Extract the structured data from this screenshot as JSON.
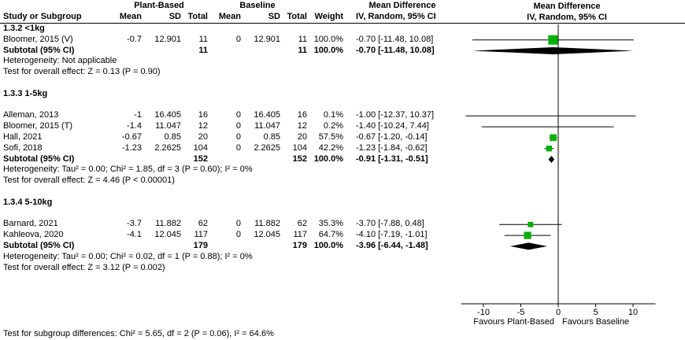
{
  "header": {
    "group_plant": "Plant-Based",
    "group_baseline": "Baseline",
    "md": "Mean Difference",
    "study": "Study or Subgroup",
    "mean": "Mean",
    "sd": "SD",
    "total": "Total",
    "weight": "Weight",
    "ci": "IV, Random, 95% CI"
  },
  "footer": {
    "subgroup_diff": "Test for subgroup differences: Chi² = 5.65, df = 2 (P = 0.06), I² = 64.6%"
  },
  "colors": {
    "square": "#00b000",
    "line": "#000000",
    "diamond": "#000000"
  },
  "chart_data": {
    "type": "forest",
    "title": "Mean Difference, IV, Random, 95% CI",
    "x_ticks": [
      -10,
      -5,
      0,
      5,
      10
    ],
    "x_range": [
      -13,
      13
    ],
    "favours_left": "Favours Plant-Based",
    "favours_right": "Favours Baseline",
    "rows": [
      {
        "type": "subgroup",
        "label": "1.3.2 <1kg"
      },
      {
        "type": "study",
        "label": "Bloomer, 2015 (V)",
        "mean1": "-0.7",
        "sd1": "12.901",
        "total1": "11",
        "mean2": "0",
        "sd2": "12.901",
        "total2": "11",
        "weight": "100.0%",
        "ci": "-0.70 [-11.48, 10.08]",
        "est": -0.7,
        "lo": -11.48,
        "hi": 10.08
      },
      {
        "type": "subtotal",
        "label": "Subtotal (95% CI)",
        "total1": "11",
        "total2": "11",
        "weight": "100.0%",
        "ci": "-0.70 [-11.48, 10.08]",
        "est": -0.7,
        "lo": -11.48,
        "hi": 10.08
      },
      {
        "type": "note",
        "label": "Heterogeneity: Not applicable"
      },
      {
        "type": "note",
        "label": "Test for overall effect: Z = 0.13 (P = 0.90)"
      },
      {
        "type": "blank"
      },
      {
        "type": "subgroup",
        "label": "1.3.3 1-5kg"
      },
      {
        "type": "blank"
      },
      {
        "type": "study",
        "label": "Alleman, 2013",
        "mean1": "-1",
        "sd1": "16.405",
        "total1": "16",
        "mean2": "0",
        "sd2": "16.405",
        "total2": "16",
        "weight": "0.1%",
        "ci": "-1.00 [-12.37, 10.37]",
        "est": -1.0,
        "lo": -12.37,
        "hi": 10.37
      },
      {
        "type": "study",
        "label": "Bloomer, 2015 (T)",
        "mean1": "-1.4",
        "sd1": "11.047",
        "total1": "12",
        "mean2": "0",
        "sd2": "11.047",
        "total2": "12",
        "weight": "0.2%",
        "ci": "-1.40 [-10.24, 7.44]",
        "est": -1.4,
        "lo": -10.24,
        "hi": 7.44
      },
      {
        "type": "study",
        "label": "Hall, 2021",
        "mean1": "-0.67",
        "sd1": "0.85",
        "total1": "20",
        "mean2": "0",
        "sd2": "0.85",
        "total2": "20",
        "weight": "57.5%",
        "ci": "-0.67 [-1.20, -0.14]",
        "est": -0.67,
        "lo": -1.2,
        "hi": -0.14
      },
      {
        "type": "study",
        "label": "Sofi, 2018",
        "mean1": "-1.23",
        "sd1": "2.2625",
        "total1": "104",
        "mean2": "0",
        "sd2": "2.2625",
        "total2": "104",
        "weight": "42.2%",
        "ci": "-1.23 [-1.84, -0.62]",
        "est": -1.23,
        "lo": -1.84,
        "hi": -0.62
      },
      {
        "type": "subtotal",
        "label": "Subtotal (95% CI)",
        "total1": "152",
        "total2": "152",
        "weight": "100.0%",
        "ci": "-0.91 [-1.31, -0.51]",
        "est": -0.91,
        "lo": -1.31,
        "hi": -0.51
      },
      {
        "type": "note",
        "label": "Heterogeneity: Tau² = 0.00; Chi² = 1.85, df = 3 (P = 0.60); I² = 0%"
      },
      {
        "type": "note",
        "label": "Test for overall effect: Z = 4.46 (P < 0.00001)"
      },
      {
        "type": "blank"
      },
      {
        "type": "subgroup",
        "label": "1.3.4 5-10kg"
      },
      {
        "type": "blank"
      },
      {
        "type": "study",
        "label": "Barnard, 2021",
        "mean1": "-3.7",
        "sd1": "11.882",
        "total1": "62",
        "mean2": "0",
        "sd2": "11.882",
        "total2": "62",
        "weight": "35.3%",
        "ci": "-3.70 [-7.88, 0.48]",
        "est": -3.7,
        "lo": -7.88,
        "hi": 0.48
      },
      {
        "type": "study",
        "label": "Kahleova, 2020",
        "mean1": "-4.1",
        "sd1": "12.045",
        "total1": "117",
        "mean2": "0",
        "sd2": "12.045",
        "total2": "117",
        "weight": "64.7%",
        "ci": "-4.10 [-7.19, -1.01]",
        "est": -4.1,
        "lo": -7.19,
        "hi": -1.01
      },
      {
        "type": "subtotal",
        "label": "Subtotal (95% CI)",
        "total1": "179",
        "total2": "179",
        "weight": "100.0%",
        "ci": "-3.96 [-6.44, -1.48]",
        "est": -3.96,
        "lo": -6.44,
        "hi": -1.48
      },
      {
        "type": "note",
        "label": "Heterogeneity: Tau² = 0.00; Chi² = 0.02, df = 1 (P = 0.88); I² = 0%"
      },
      {
        "type": "note",
        "label": "Test for overall effect: Z = 3.12 (P = 0.002)"
      }
    ]
  }
}
